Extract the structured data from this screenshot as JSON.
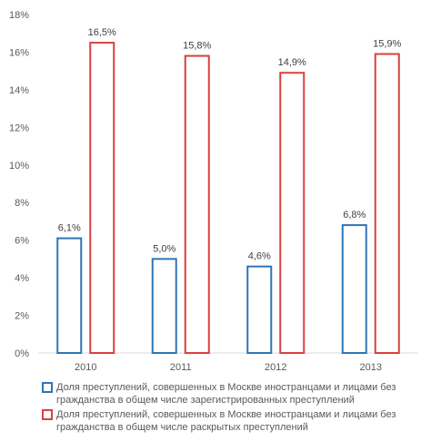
{
  "chart_data": {
    "type": "bar",
    "categories": [
      "2010",
      "2011",
      "2012",
      "2013"
    ],
    "series": [
      {
        "name": "Доля преступлений, совершенных в Москве иностранцами и лицами без гражданства в общем числе зарегистрированных преступлений",
        "values": [
          6.1,
          5.0,
          4.6,
          6.8
        ],
        "labels": [
          "6,1%",
          "5,0%",
          "4,6%",
          "6,8%"
        ],
        "color": "#2e75b6"
      },
      {
        "name": "Доля преступлений, совершенных в Москве иностранцами и лицами без гражданства  в общем числе раскрытых преступлений",
        "values": [
          16.5,
          15.8,
          14.9,
          15.9
        ],
        "labels": [
          "16,5%",
          "15,8%",
          "14,9%",
          "15,9%"
        ],
        "color": "#d9403f"
      }
    ],
    "ylim": [
      0,
      18
    ],
    "yticks": [
      "0%",
      "2%",
      "4%",
      "6%",
      "8%",
      "10%",
      "12%",
      "14%",
      "16%",
      "18%"
    ],
    "grid": false,
    "legend_position": "bottom"
  }
}
